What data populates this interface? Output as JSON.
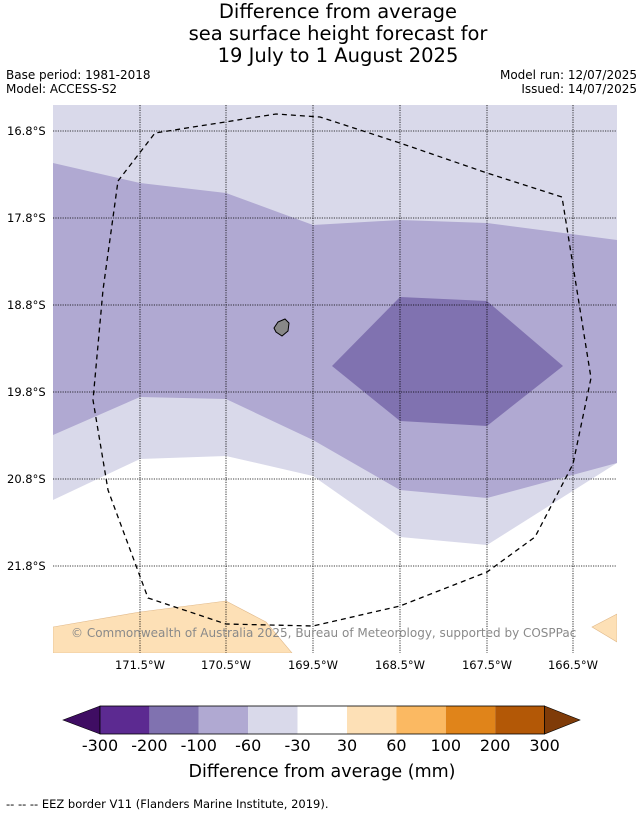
{
  "title": {
    "line1": "Difference from average",
    "line2": "sea surface height forecast for",
    "line3": "19 July to 1 August 2025"
  },
  "meta": {
    "base_period": "Base period: 1981-2018",
    "model": "Model: ACCESS-S2",
    "model_run": "Model run: 12/07/2025",
    "issued": "Issued: 14/07/2025"
  },
  "map": {
    "lat_labels": [
      "16.8°S",
      "17.8°S",
      "18.8°S",
      "19.8°S",
      "20.8°S",
      "21.8°S"
    ],
    "lon_labels": [
      "171.5°W",
      "170.5°W",
      "169.5°W",
      "168.5°W",
      "167.5°W",
      "166.5°W"
    ],
    "copyright": "© Commonwealth of Australia 2025, Bureau of Meteorology, supported by COSPPac"
  },
  "colorbar": {
    "ticks": [
      "-300",
      "-200",
      "-100",
      "-60",
      "-30",
      "30",
      "60",
      "100",
      "200",
      "300"
    ],
    "title": "Difference from average (mm)",
    "colors": [
      "#3f0d63",
      "#5c2a91",
      "#8072b0",
      "#b0a9d2",
      "#d9d9ea",
      "#ffffff",
      "#fde0b6",
      "#fbb962",
      "#e0841a",
      "#b35806",
      "#7f3b08"
    ]
  },
  "footnote": "-- -- -- EEZ border V11 (Flanders Marine Institute, 2019)."
}
